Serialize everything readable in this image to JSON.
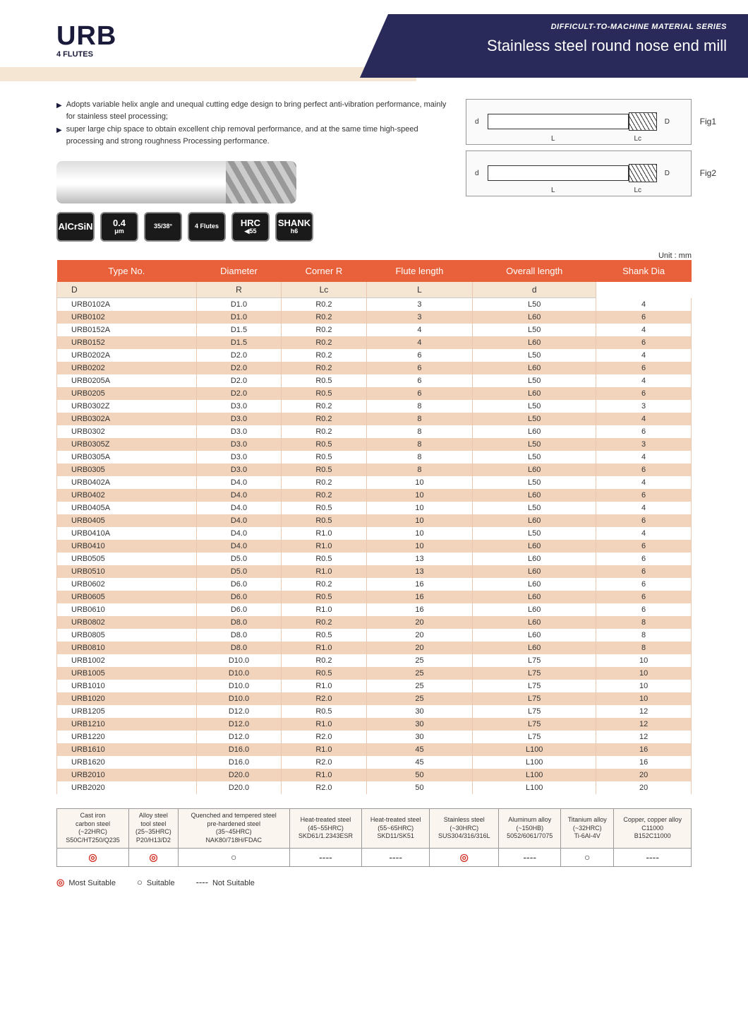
{
  "header": {
    "code": "URB",
    "flutes": "4 FLUTES",
    "series": "DIFFICULT-TO-MACHINE MATERIAL SERIES",
    "title": "Stainless steel round nose end mill"
  },
  "bullets": [
    "Adopts variable helix angle and unequal cutting edge design to bring perfect anti-vibration performance, mainly for stainless steel processing;",
    "super large chip space to obtain excellent chip removal performance, and at the same time high-speed processing and strong roughness Processing performance."
  ],
  "badges": [
    {
      "l1": "AlCrSiN"
    },
    {
      "l1": "0.4",
      "l2": "μm"
    },
    {
      "l1": "",
      "l2": "35/38°"
    },
    {
      "l1": "",
      "l2": "4 Flutes"
    },
    {
      "l1": "HRC",
      "l2": "◀55"
    },
    {
      "l1": "SHANK",
      "l2": "h6"
    }
  ],
  "fig1": "Fig1",
  "fig2": "Fig2",
  "dim_d": "d",
  "dim_D": "D",
  "dim_Lc": "Lc",
  "dim_L": "L",
  "unit": "Unit : mm",
  "table": {
    "headers": [
      "Type No.",
      "Diameter",
      "Corner R",
      "Flute length",
      "Overall length",
      "Shank Dia"
    ],
    "subheaders": [
      "",
      "D",
      "R",
      "Lc",
      "L",
      "d"
    ],
    "rows": [
      [
        "URB0102A",
        "D1.0",
        "R0.2",
        "3",
        "L50",
        "4"
      ],
      [
        "URB0102",
        "D1.0",
        "R0.2",
        "3",
        "L60",
        "6"
      ],
      [
        "URB0152A",
        "D1.5",
        "R0.2",
        "4",
        "L50",
        "4"
      ],
      [
        "URB0152",
        "D1.5",
        "R0.2",
        "4",
        "L60",
        "6"
      ],
      [
        "URB0202A",
        "D2.0",
        "R0.2",
        "6",
        "L50",
        "4"
      ],
      [
        "URB0202",
        "D2.0",
        "R0.2",
        "6",
        "L60",
        "6"
      ],
      [
        "URB0205A",
        "D2.0",
        "R0.5",
        "6",
        "L50",
        "4"
      ],
      [
        "URB0205",
        "D2.0",
        "R0.5",
        "6",
        "L60",
        "6"
      ],
      [
        "URB0302Z",
        "D3.0",
        "R0.2",
        "8",
        "L50",
        "3"
      ],
      [
        "URB0302A",
        "D3.0",
        "R0.2",
        "8",
        "L50",
        "4"
      ],
      [
        "URB0302",
        "D3.0",
        "R0.2",
        "8",
        "L60",
        "6"
      ],
      [
        "URB0305Z",
        "D3.0",
        "R0.5",
        "8",
        "L50",
        "3"
      ],
      [
        "URB0305A",
        "D3.0",
        "R0.5",
        "8",
        "L50",
        "4"
      ],
      [
        "URB0305",
        "D3.0",
        "R0.5",
        "8",
        "L60",
        "6"
      ],
      [
        "URB0402A",
        "D4.0",
        "R0.2",
        "10",
        "L50",
        "4"
      ],
      [
        "URB0402",
        "D4.0",
        "R0.2",
        "10",
        "L60",
        "6"
      ],
      [
        "URB0405A",
        "D4.0",
        "R0.5",
        "10",
        "L50",
        "4"
      ],
      [
        "URB0405",
        "D4.0",
        "R0.5",
        "10",
        "L60",
        "6"
      ],
      [
        "URB0410A",
        "D4.0",
        "R1.0",
        "10",
        "L50",
        "4"
      ],
      [
        "URB0410",
        "D4.0",
        "R1.0",
        "10",
        "L60",
        "6"
      ],
      [
        "URB0505",
        "D5.0",
        "R0.5",
        "13",
        "L60",
        "6"
      ],
      [
        "URB0510",
        "D5.0",
        "R1.0",
        "13",
        "L60",
        "6"
      ],
      [
        "URB0602",
        "D6.0",
        "R0.2",
        "16",
        "L60",
        "6"
      ],
      [
        "URB0605",
        "D6.0",
        "R0.5",
        "16",
        "L60",
        "6"
      ],
      [
        "URB0610",
        "D6.0",
        "R1.0",
        "16",
        "L60",
        "6"
      ],
      [
        "URB0802",
        "D8.0",
        "R0.2",
        "20",
        "L60",
        "8"
      ],
      [
        "URB0805",
        "D8.0",
        "R0.5",
        "20",
        "L60",
        "8"
      ],
      [
        "URB0810",
        "D8.0",
        "R1.0",
        "20",
        "L60",
        "8"
      ],
      [
        "URB1002",
        "D10.0",
        "R0.2",
        "25",
        "L75",
        "10"
      ],
      [
        "URB1005",
        "D10.0",
        "R0.5",
        "25",
        "L75",
        "10"
      ],
      [
        "URB1010",
        "D10.0",
        "R1.0",
        "25",
        "L75",
        "10"
      ],
      [
        "URB1020",
        "D10.0",
        "R2.0",
        "25",
        "L75",
        "10"
      ],
      [
        "URB1205",
        "D12.0",
        "R0.5",
        "30",
        "L75",
        "12"
      ],
      [
        "URB1210",
        "D12.0",
        "R1.0",
        "30",
        "L75",
        "12"
      ],
      [
        "URB1220",
        "D12.0",
        "R2.0",
        "30",
        "L75",
        "12"
      ],
      [
        "URB1610",
        "D16.0",
        "R1.0",
        "45",
        "L100",
        "16"
      ],
      [
        "URB1620",
        "D16.0",
        "R2.0",
        "45",
        "L100",
        "16"
      ],
      [
        "URB2010",
        "D20.0",
        "R1.0",
        "50",
        "L100",
        "20"
      ],
      [
        "URB2020",
        "D20.0",
        "R2.0",
        "50",
        "L100",
        "20"
      ]
    ]
  },
  "materials": {
    "cols": [
      {
        "l1": "Cast iron",
        "l2": "carbon steel",
        "l3": "(~22HRC)",
        "l4": "S50C/HT250/Q235"
      },
      {
        "l1": "Alloy steel",
        "l2": "tool steel",
        "l3": "(25~35HRC)",
        "l4": "P20/H13/D2"
      },
      {
        "l1": "Quenched and tempered steel",
        "l2": "pre-hardened steel",
        "l3": "(35~45HRC)",
        "l4": "NAK80/718H/FDAC"
      },
      {
        "l1": "Heat-treated steel",
        "l2": "",
        "l3": "(45~55HRC)",
        "l4": "SKD61/1.2343ESR"
      },
      {
        "l1": "Heat-treated steel",
        "l2": "",
        "l3": "(55~65HRC)",
        "l4": "SKD11/SK51"
      },
      {
        "l1": "Stainless steel",
        "l2": "",
        "l3": "(~30HRC)",
        "l4": "SUS304/316/316L"
      },
      {
        "l1": "Aluminum alloy",
        "l2": "",
        "l3": "(~150HB)",
        "l4": "5052/6061/7075"
      },
      {
        "l1": "Titanium alloy",
        "l2": "",
        "l3": "(~32HRC)",
        "l4": "Ti-6Al-4V"
      },
      {
        "l1": "Copper, copper alloy",
        "l2": "",
        "l3": "C11000",
        "l4": "B152C11000"
      }
    ],
    "symbols": [
      "◎",
      "◎",
      "○",
      "----",
      "----",
      "◎",
      "----",
      "○",
      "----"
    ]
  },
  "legend": {
    "most": "Most Suitable",
    "suit": "Suitable",
    "not": "Not Suitable",
    "s_most": "◎",
    "s_suit": "○",
    "s_not": "----"
  }
}
